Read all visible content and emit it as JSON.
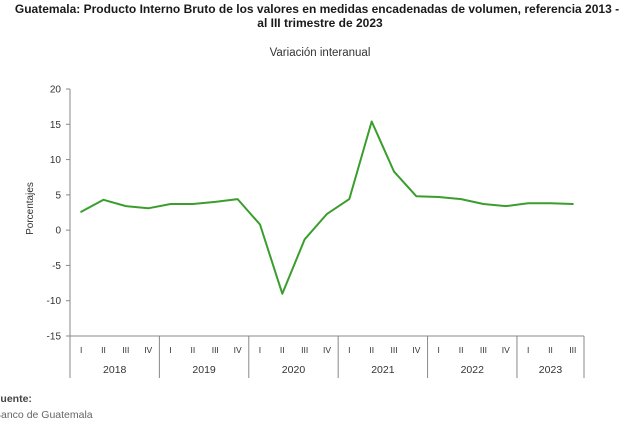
{
  "chart_data": {
    "type": "line",
    "title_line1": "Guatemala: Producto Interno Bruto de los valores en medidas encadenadas  de volumen, referencia 2013 -",
    "title_line2": "al III trimestre de 2023",
    "subtitle": "Variación interanual",
    "ylabel": "Porcentajes",
    "ylim": [
      -15,
      20
    ],
    "yticks": [
      -15,
      -10,
      -5,
      0,
      5,
      10,
      15,
      20
    ],
    "grid": false,
    "legend": "none",
    "quarters": [
      "I",
      "II",
      "III",
      "IV",
      "I",
      "II",
      "III",
      "IV",
      "I",
      "II",
      "III",
      "IV",
      "I",
      "II",
      "III",
      "IV",
      "I",
      "II",
      "III",
      "IV",
      "I",
      "II",
      "III"
    ],
    "years": [
      {
        "label": "2018",
        "quarters": 4
      },
      {
        "label": "2019",
        "quarters": 4
      },
      {
        "label": "2020",
        "quarters": 4
      },
      {
        "label": "2021",
        "quarters": 4
      },
      {
        "label": "2022",
        "quarters": 4
      },
      {
        "label": "2023",
        "quarters": 3
      }
    ],
    "series": [
      {
        "color": "#3a9e2c",
        "values": [
          2.6,
          4.3,
          3.4,
          3.1,
          3.7,
          3.7,
          4.0,
          4.4,
          0.8,
          -9.0,
          -1.3,
          2.3,
          4.4,
          15.4,
          8.3,
          4.8,
          4.7,
          4.4,
          3.7,
          3.4,
          3.8,
          3.8,
          3.7
        ]
      }
    ]
  },
  "source": {
    "label": "Fuente:",
    "text": "Banco de Guatemala"
  }
}
